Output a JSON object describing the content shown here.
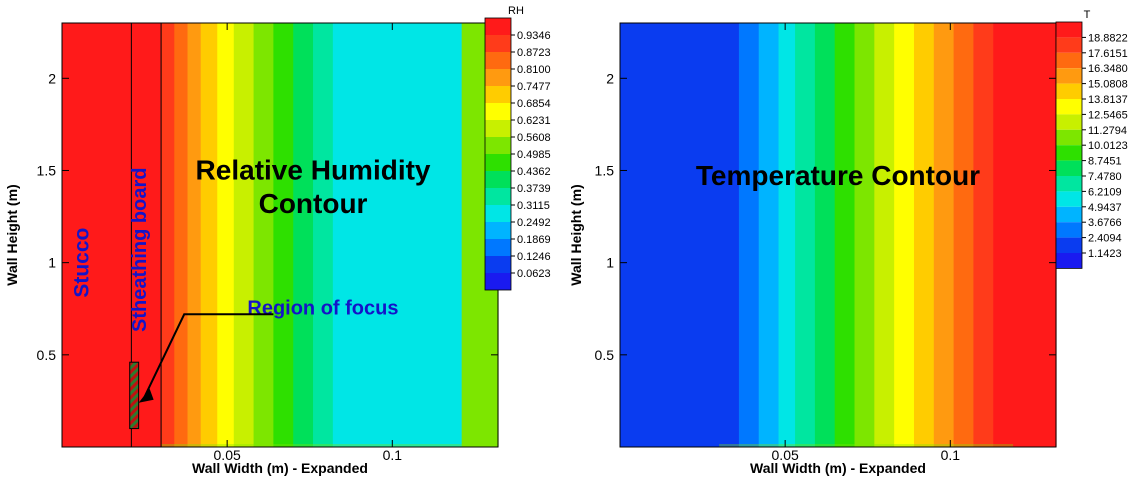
{
  "chart_data": [
    {
      "type": "heatmap",
      "id": "rh",
      "xlabel": "Wall Width (m) - Expanded",
      "ylabel": "Wall Height (m)",
      "xlim": [
        0.0,
        0.132
      ],
      "ylim": [
        0.0,
        2.3
      ],
      "xticks": [
        {
          "value": 0.05,
          "label": "0.05"
        },
        {
          "value": 0.1,
          "label": "0.1"
        }
      ],
      "yticks": [
        {
          "value": 0.5,
          "label": "0.5"
        },
        {
          "value": 1.0,
          "label": "1"
        },
        {
          "value": 1.5,
          "label": "1.5"
        },
        {
          "value": 2.0,
          "label": "2"
        }
      ],
      "legend": {
        "title": "RH",
        "placement": "top-right",
        "levels": [
          "0.9346",
          "0.8723",
          "0.8100",
          "0.7477",
          "0.6854",
          "0.6231",
          "0.5608",
          "0.4985",
          "0.4362",
          "0.3739",
          "0.3115",
          "0.2492",
          "0.1869",
          "0.1246",
          "0.0623"
        ],
        "colors": [
          "#ff1a1a",
          "#ff3b1a",
          "#ff6a10",
          "#ff9a10",
          "#ffcc00",
          "#ffff00",
          "#c8f000",
          "#7de600",
          "#2ee000",
          "#00e05a",
          "#00e6a0",
          "#00e6e6",
          "#00b4ff",
          "#0078ff",
          "#0a3cf0",
          "#1a1af0"
        ]
      },
      "bands_x": [
        0.0,
        0.03,
        0.034,
        0.038,
        0.042,
        0.047,
        0.052,
        0.058,
        0.064,
        0.07,
        0.076,
        0.082,
        0.121,
        0.132
      ],
      "band_values": [
        0.96,
        0.905,
        0.84,
        0.78,
        0.72,
        0.655,
        0.595,
        0.53,
        0.47,
        0.405,
        0.345,
        0.285,
        0.53
      ],
      "boundaries_x": [
        0.021,
        0.03
      ],
      "annotations": [
        {
          "text": "Stucco",
          "x": 0.008,
          "y": 1.0,
          "rotate": -90
        },
        {
          "text": "Stheathing board",
          "x": 0.0255,
          "y": 1.07,
          "rotate": -90
        },
        {
          "text": "Relative Humidity",
          "x": 0.076,
          "y": 1.45
        },
        {
          "text": "Contour",
          "x": 0.076,
          "y": 1.27
        },
        {
          "text": "Region of focus",
          "x": 0.079,
          "y": 0.72
        }
      ],
      "focus_region": {
        "x": [
          0.0205,
          0.0232
        ],
        "y": [
          0.1,
          0.46
        ]
      }
    },
    {
      "type": "heatmap",
      "id": "temp",
      "xlabel": "Wall Width (m) - Expanded",
      "ylabel": "Wall Height (m)",
      "xlim": [
        0.0,
        0.132
      ],
      "ylim": [
        0.0,
        2.3
      ],
      "xticks": [
        {
          "value": 0.05,
          "label": "0.05"
        },
        {
          "value": 0.1,
          "label": "0.1"
        }
      ],
      "yticks": [
        {
          "value": 0.5,
          "label": "0.5"
        },
        {
          "value": 1.0,
          "label": "1"
        },
        {
          "value": 1.5,
          "label": "1.5"
        },
        {
          "value": 2.0,
          "label": "2"
        }
      ],
      "legend": {
        "title": "T",
        "placement": "top-right",
        "levels": [
          "18.8822",
          "17.6151",
          "16.3480",
          "15.0808",
          "13.8137",
          "12.5465",
          "11.2794",
          "10.0123",
          "8.7451",
          "7.4780",
          "6.2109",
          "4.9437",
          "3.6766",
          "2.4094",
          "1.1423"
        ],
        "colors": [
          "#ff1a1a",
          "#ff3b1a",
          "#ff6a10",
          "#ff9a10",
          "#ffcc00",
          "#ffff00",
          "#c8f000",
          "#7de600",
          "#2ee000",
          "#00e05a",
          "#00e6a0",
          "#00e6e6",
          "#00b4ff",
          "#0078ff",
          "#0a3cf0",
          "#1a1af0"
        ]
      },
      "bands_x": [
        0.0,
        0.03,
        0.036,
        0.042,
        0.048,
        0.053,
        0.059,
        0.065,
        0.071,
        0.077,
        0.083,
        0.089,
        0.095,
        0.101,
        0.107,
        0.113,
        0.119,
        0.132
      ],
      "band_values": [
        1.2,
        2.0,
        3.2,
        4.5,
        5.7,
        7.0,
        8.3,
        9.5,
        10.8,
        12.0,
        13.3,
        14.6,
        15.8,
        17.1,
        18.3,
        19.0,
        19.0
      ],
      "annotations": [
        {
          "text": "Temperature Contour",
          "x": 0.066,
          "y": 1.42
        }
      ]
    }
  ]
}
